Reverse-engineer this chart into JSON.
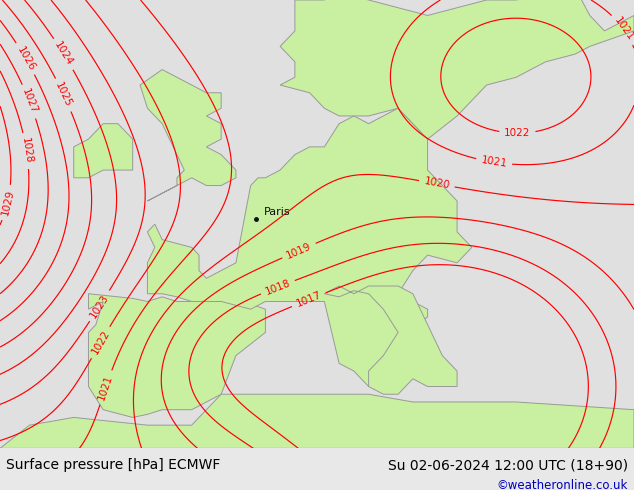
{
  "title_left": "Surface pressure [hPa] ECMWF",
  "title_right": "Su 02-06-2024 12:00 UTC (18+90)",
  "credit": "©weatheronline.co.uk",
  "credit_color": "#0000bb",
  "bg_color": "#e8e8e8",
  "land_color": "#c8f0a0",
  "sea_color": "#e0e0e0",
  "isobar_color": "#ff0000",
  "coast_color": "#999999",
  "paris_label": "Paris",
  "paris_dot_color": "#111111",
  "figsize": [
    6.34,
    4.9
  ],
  "dpi": 100,
  "title_fontsize": 10,
  "credit_fontsize": 8.5,
  "isobar_fontsize": 7.5,
  "paris_fontsize": 8,
  "isobar_lw": 0.85,
  "coast_lw": 0.7
}
